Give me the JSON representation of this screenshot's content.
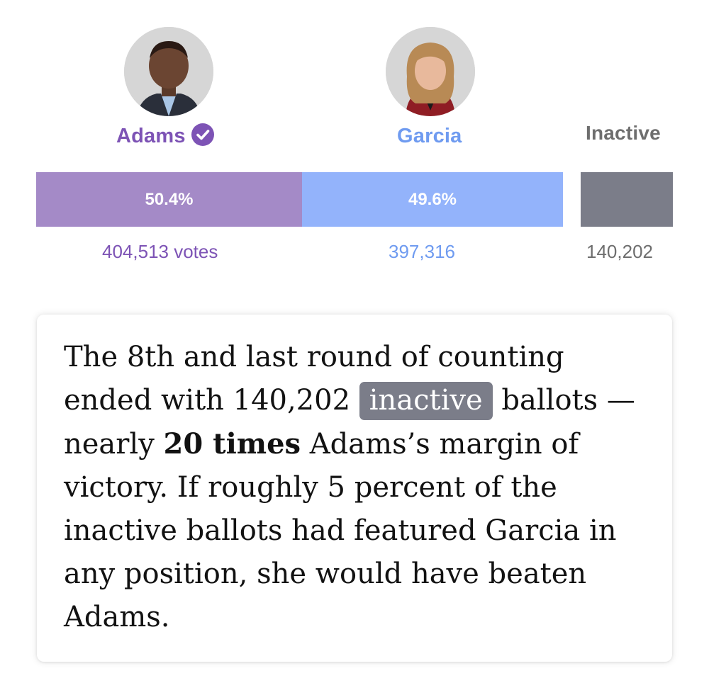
{
  "colors": {
    "adams": "#a48ac7",
    "adams_text": "#7d53b5",
    "garcia": "#93b3fb",
    "garcia_text": "#6f9bf0",
    "inactive": "#7b7d89",
    "inactive_text": "#6e6e6e"
  },
  "candidates": [
    {
      "name": "Adams",
      "winner": true,
      "icon": "verified-check-icon"
    },
    {
      "name": "Garcia",
      "winner": false
    },
    {
      "name": "Inactive",
      "winner": false
    }
  ],
  "chart_data": {
    "type": "bar",
    "orientation": "horizontal-stacked",
    "categories": [
      "Adams",
      "Garcia",
      "Inactive"
    ],
    "values": [
      404513,
      397316,
      140202
    ],
    "percent_labels": [
      "50.4%",
      "49.6%",
      ""
    ],
    "percent_values": [
      50.4,
      49.6,
      null
    ],
    "vote_labels": [
      "404,513 votes",
      "397,316",
      "140,202"
    ],
    "title": "",
    "xlabel": "",
    "ylabel": ""
  },
  "note": {
    "before": "The 8th and last round of counting ended with 140,202 ",
    "highlight": "inactive",
    "middle": " ballots — nearly ",
    "bold": "20 times",
    "after": " Adams’s margin of victory. If roughly 5 percent of the inactive ballots had featured Garcia in any position, she would have beaten Adams."
  }
}
